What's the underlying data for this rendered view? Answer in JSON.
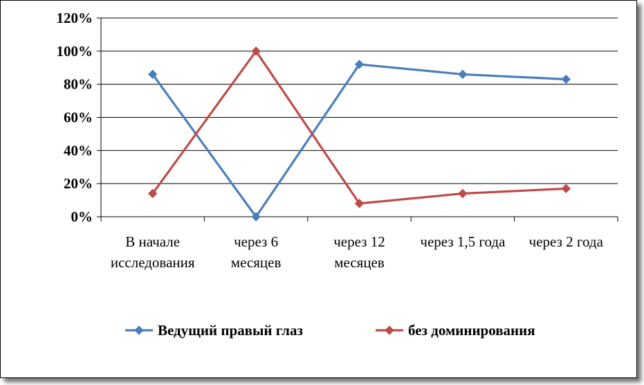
{
  "chart_data": {
    "type": "line",
    "title": "",
    "xlabel": "",
    "ylabel": "",
    "categories": [
      [
        "В начале",
        "исследования"
      ],
      [
        "через 6",
        "месяцев"
      ],
      [
        "через 12",
        "месяцев"
      ],
      [
        "через 1,5 года"
      ],
      [
        "через 2 года"
      ]
    ],
    "y_ticks": [
      "0%",
      "20%",
      "40%",
      "60%",
      "80%",
      "100%",
      "120%"
    ],
    "ylim": [
      0,
      120
    ],
    "grid": "horizontal",
    "legend_position": "bottom",
    "series": [
      {
        "name": "Ведущий  правый глаз",
        "color": "#4A7EBB",
        "values": [
          86,
          0,
          92,
          86,
          83
        ]
      },
      {
        "name": "без доминирования",
        "color": "#BE4B48",
        "values": [
          14,
          100,
          8,
          14,
          17
        ]
      }
    ]
  }
}
